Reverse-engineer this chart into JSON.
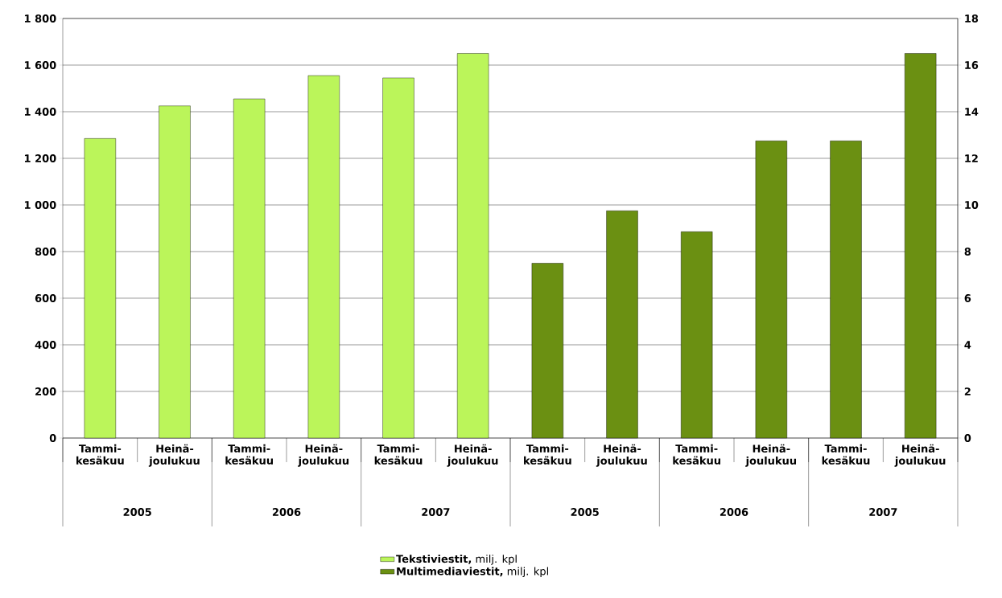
{
  "chart_data": {
    "type": "bar",
    "categories": [
      "Tammi-kesäkuu",
      "Heinä-joulukuu",
      "Tammi-kesäkuu",
      "Heinä-joulukuu",
      "Tammi-kesäkuu",
      "Heinä-joulukuu",
      "Tammi-kesäkuu",
      "Heinä-joulukuu",
      "Tammi-kesäkuu",
      "Heinä-joulukuu",
      "Tammi-kesäkuu",
      "Heinä-joulukuu"
    ],
    "series": [
      {
        "name": "**Tekstiviestit,** milj. kpl",
        "color": "#bbf55a",
        "values": [
          1285,
          1425,
          1455,
          1555,
          1545,
          1650,
          null,
          null,
          null,
          null,
          null,
          null
        ]
      },
      {
        "name": "**Multimediaviestit,** milj. kpl",
        "color": "#6b9012",
        "axis": "y2",
        "values": [
          null,
          null,
          null,
          null,
          null,
          null,
          7.5,
          9.75,
          8.85,
          12.75,
          12.75,
          16.5
        ]
      }
    ],
    "ylim": [
      0,
      1800
    ],
    "yticks": [
      0,
      200,
      400,
      600,
      800,
      {
        "value": 1000,
        "label": "1 000"
      },
      {
        "value": 1200,
        "label": "1 200"
      },
      {
        "value": 1400,
        "label": "1 400"
      },
      {
        "value": 1600,
        "label": "1 600"
      },
      {
        "value": 1800,
        "label": "1 800"
      }
    ],
    "y2lim": [
      0,
      18
    ],
    "y2ticks": [
      0,
      2,
      4,
      6,
      8,
      10,
      12,
      14,
      16,
      18
    ],
    "annotations": [
      "2005",
      "2006",
      "2007",
      "2005",
      "2006",
      "2007"
    ],
    "grid": "y",
    "legend": "bottom"
  }
}
